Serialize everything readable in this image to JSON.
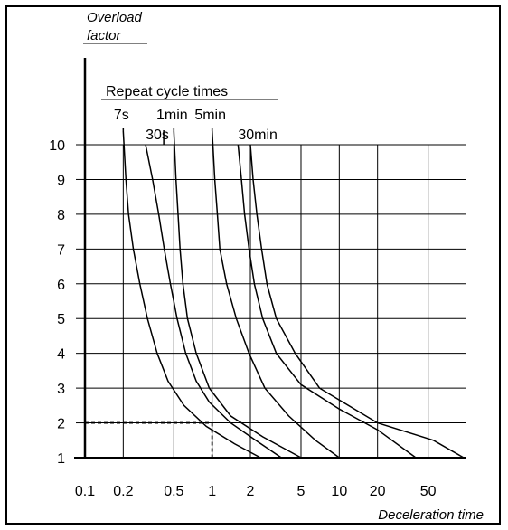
{
  "chart_data": {
    "type": "line",
    "title": "",
    "xlabel": "Deceleration time",
    "ylabel": "Overload factor",
    "ylabel_lines": [
      "Overload",
      "factor"
    ],
    "x_scale": "log",
    "xlim": [
      0.1,
      100
    ],
    "ylim": [
      1,
      10
    ],
    "x_ticks": [
      0.1,
      0.2,
      0.5,
      1,
      2,
      5,
      10,
      20,
      50
    ],
    "x_tick_labels": [
      "0.1",
      "0.2",
      "0.5",
      "1",
      "2",
      "5",
      "10",
      "20",
      "50"
    ],
    "x_grid": [
      0.2,
      0.5,
      1,
      2,
      5,
      10,
      20,
      50
    ],
    "y_ticks": [
      1,
      2,
      3,
      4,
      5,
      6,
      7,
      8,
      9,
      10
    ],
    "y_tick_labels": [
      "1",
      "2",
      "3",
      "4",
      "5",
      "6",
      "7",
      "8",
      "9",
      "10"
    ],
    "grid": true,
    "legend_title": "Repeat cycle times",
    "legend": "top-left",
    "series": [
      {
        "name": "7s",
        "label_row": 1,
        "label_x": 0.2,
        "points": [
          [
            0.2,
            10.4
          ],
          [
            0.21,
            9
          ],
          [
            0.22,
            8
          ],
          [
            0.24,
            7
          ],
          [
            0.27,
            6
          ],
          [
            0.31,
            5
          ],
          [
            0.37,
            4
          ],
          [
            0.45,
            3.2
          ],
          [
            0.6,
            2.5
          ],
          [
            0.9,
            1.9
          ],
          [
            1.5,
            1.4
          ],
          [
            2.4,
            1
          ]
        ]
      },
      {
        "name": "30s",
        "label_row": 2,
        "label_x": 0.3,
        "points": [
          [
            0.3,
            10
          ],
          [
            0.34,
            9
          ],
          [
            0.38,
            8
          ],
          [
            0.42,
            7
          ],
          [
            0.47,
            6
          ],
          [
            0.53,
            5
          ],
          [
            0.62,
            4
          ],
          [
            0.75,
            3.2
          ],
          [
            0.95,
            2.6
          ],
          [
            1.4,
            2
          ],
          [
            2.2,
            1.5
          ],
          [
            3.5,
            1
          ]
        ]
      },
      {
        "name": "1min",
        "label_row": 1,
        "label_x": 0.5,
        "points": [
          [
            0.5,
            10.4
          ],
          [
            0.52,
            9
          ],
          [
            0.54,
            8
          ],
          [
            0.56,
            7
          ],
          [
            0.59,
            6
          ],
          [
            0.64,
            5
          ],
          [
            0.75,
            4
          ],
          [
            0.95,
            3
          ],
          [
            1.4,
            2.2
          ],
          [
            2.5,
            1.6
          ],
          [
            5,
            1
          ]
        ]
      },
      {
        "name": "5min",
        "label_row": 1,
        "label_x": 1,
        "points": [
          [
            1,
            10.4
          ],
          [
            1.05,
            9
          ],
          [
            1.1,
            8
          ],
          [
            1.15,
            7
          ],
          [
            1.3,
            6
          ],
          [
            1.55,
            5
          ],
          [
            1.95,
            4
          ],
          [
            2.6,
            3
          ],
          [
            4,
            2.2
          ],
          [
            6.5,
            1.5
          ],
          [
            10,
            1
          ]
        ]
      },
      {
        "name": "30min",
        "label_row": 2,
        "label_x": 1.6,
        "points": [
          [
            1.6,
            10
          ],
          [
            1.7,
            9
          ],
          [
            1.8,
            8
          ],
          [
            1.95,
            7
          ],
          [
            2.15,
            6
          ],
          [
            2.5,
            5
          ],
          [
            3.2,
            4
          ],
          [
            5,
            3.1
          ],
          [
            10,
            2.4
          ],
          [
            20,
            1.8
          ],
          [
            40,
            1
          ]
        ]
      },
      {
        "name": "",
        "label_row": 0,
        "label_x": 0,
        "points": [
          [
            2,
            10
          ],
          [
            2.1,
            9
          ],
          [
            2.25,
            8
          ],
          [
            2.45,
            7
          ],
          [
            2.7,
            6
          ],
          [
            3.2,
            5
          ],
          [
            4.5,
            4
          ],
          [
            7,
            3
          ],
          [
            20,
            2
          ],
          [
            55,
            1.5
          ],
          [
            95,
            1
          ]
        ]
      }
    ],
    "annotation": {
      "x": 1,
      "y": 2,
      "style": "dashed"
    }
  }
}
